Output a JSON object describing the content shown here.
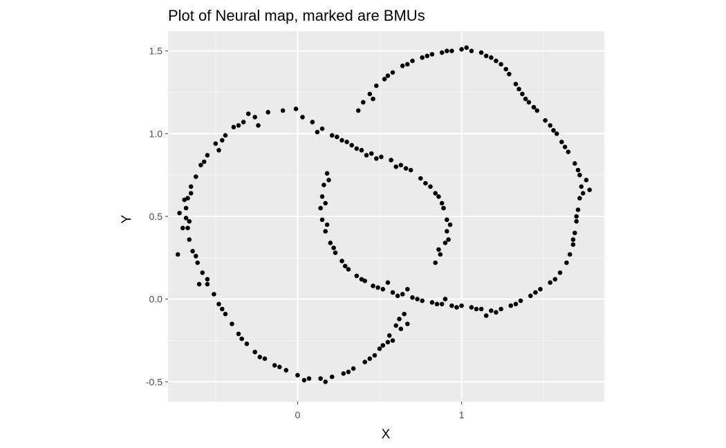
{
  "colors": {
    "panel_background": "#EBEBEB",
    "grid_major": "#FFFFFF",
    "grid_minor": "#F5F5F5",
    "points": "#000000",
    "tick_text": "#4D4D4D",
    "tick_marks": "#333333"
  },
  "chart_data": {
    "type": "scatter",
    "title": "Plot of Neural map, marked are BMUs",
    "xlabel": "X",
    "ylabel": "Y",
    "xlim": [
      -0.79,
      1.87
    ],
    "ylim": [
      -0.62,
      1.62
    ],
    "x_ticks": [
      {
        "value": 0,
        "label": "0"
      },
      {
        "value": 1,
        "label": "1"
      }
    ],
    "y_ticks": [
      {
        "value": -0.5,
        "label": "-0.5"
      },
      {
        "value": 0.0,
        "label": "0.0"
      },
      {
        "value": 0.5,
        "label": "0.5"
      },
      {
        "value": 1.0,
        "label": "1.0"
      },
      {
        "value": 1.5,
        "label": "1.5"
      }
    ],
    "x_minor_gridlines": [
      -0.5,
      0.5,
      1.5
    ],
    "y_minor_gridlines": [
      -0.25,
      0.25,
      0.75,
      1.25
    ],
    "grid": true,
    "legend": "none",
    "series": [
      {
        "description": "left crescent",
        "points": [
          [
            -0.01,
            1.15
          ],
          [
            -0.09,
            1.14
          ],
          [
            -0.18,
            1.13
          ],
          [
            -0.26,
            1.1
          ],
          [
            -0.33,
            1.07
          ],
          [
            -0.39,
            1.04
          ],
          [
            -0.44,
            0.99
          ],
          [
            -0.5,
            0.94
          ],
          [
            -0.55,
            0.87
          ],
          [
            -0.59,
            0.81
          ],
          [
            -0.62,
            0.74
          ],
          [
            -0.65,
            0.68
          ],
          [
            -0.67,
            0.61
          ],
          [
            -0.68,
            0.55
          ],
          [
            -0.68,
            0.49
          ],
          [
            -0.67,
            0.43
          ],
          [
            -0.66,
            0.36
          ],
          [
            -0.64,
            0.29
          ],
          [
            -0.61,
            0.22
          ],
          [
            -0.58,
            0.16
          ],
          [
            -0.55,
            0.09
          ],
          [
            -0.51,
            0.03
          ],
          [
            -0.48,
            -0.03
          ],
          [
            -0.44,
            -0.09
          ],
          [
            -0.4,
            -0.15
          ],
          [
            -0.36,
            -0.21
          ],
          [
            -0.31,
            -0.27
          ],
          [
            -0.26,
            -0.32
          ],
          [
            -0.2,
            -0.36
          ],
          [
            -0.14,
            -0.4
          ],
          [
            -0.07,
            -0.43
          ],
          [
            0.0,
            -0.46
          ],
          [
            0.07,
            -0.48
          ],
          [
            0.14,
            -0.48
          ],
          [
            0.21,
            -0.47
          ],
          [
            0.28,
            -0.45
          ],
          [
            0.34,
            -0.42
          ],
          [
            0.41,
            -0.38
          ],
          [
            0.47,
            -0.34
          ],
          [
            0.52,
            -0.28
          ],
          [
            0.56,
            -0.22
          ],
          [
            0.6,
            -0.16
          ],
          [
            0.62,
            -0.12
          ],
          [
            0.65,
            -0.09
          ],
          [
            0.67,
            -0.15
          ],
          [
            0.63,
            -0.18
          ],
          [
            0.58,
            -0.25
          ],
          [
            0.5,
            -0.3
          ],
          [
            -0.36,
            1.05
          ],
          [
            -0.46,
            0.96
          ],
          [
            -0.57,
            0.83
          ],
          [
            -0.65,
            0.64
          ],
          [
            -0.66,
            0.47
          ],
          [
            -0.62,
            0.26
          ],
          [
            -0.55,
            0.12
          ],
          [
            -0.46,
            -0.06
          ],
          [
            -0.34,
            -0.24
          ],
          [
            -0.23,
            -0.35
          ],
          [
            -0.11,
            -0.41
          ],
          [
            0.04,
            -0.49
          ],
          [
            0.17,
            -0.5
          ],
          [
            0.31,
            -0.44
          ],
          [
            0.44,
            -0.36
          ],
          [
            0.55,
            -0.26
          ],
          [
            -0.72,
            0.52
          ],
          [
            -0.7,
            0.43
          ],
          [
            -0.69,
            0.6
          ],
          [
            -0.73,
            0.27
          ],
          [
            -0.6,
            0.09
          ],
          [
            -0.3,
            1.12
          ],
          [
            -0.24,
            1.05
          ],
          [
            -0.48,
            0.9
          ]
        ]
      },
      {
        "description": "diagonal band and inner arc",
        "points": [
          [
            0.03,
            1.1
          ],
          [
            0.09,
            1.07
          ],
          [
            0.15,
            1.03
          ],
          [
            0.21,
            0.99
          ],
          [
            0.27,
            0.96
          ],
          [
            0.33,
            0.93
          ],
          [
            0.39,
            0.9
          ],
          [
            0.45,
            0.88
          ],
          [
            0.51,
            0.86
          ],
          [
            0.57,
            0.84
          ],
          [
            0.63,
            0.81
          ],
          [
            0.69,
            0.78
          ],
          [
            0.75,
            0.73
          ],
          [
            0.81,
            0.68
          ],
          [
            0.86,
            0.62
          ],
          [
            0.89,
            0.55
          ],
          [
            0.91,
            0.48
          ],
          [
            0.91,
            0.41
          ],
          [
            0.9,
            0.34
          ],
          [
            0.87,
            0.27
          ],
          [
            0.84,
            0.22
          ],
          [
            0.12,
            1.01
          ],
          [
            0.3,
            0.95
          ],
          [
            0.42,
            0.87
          ],
          [
            0.6,
            0.8
          ],
          [
            0.78,
            0.7
          ],
          [
            0.88,
            0.58
          ],
          [
            0.93,
            0.45
          ],
          [
            0.92,
            0.36
          ],
          [
            0.36,
            0.91
          ],
          [
            0.48,
            0.85
          ],
          [
            0.66,
            0.79
          ],
          [
            0.84,
            0.64
          ],
          [
            0.86,
            0.3
          ],
          [
            0.24,
            0.98
          ]
        ]
      },
      {
        "description": "inner left arc and lower band",
        "points": [
          [
            0.18,
            0.76
          ],
          [
            0.16,
            0.69
          ],
          [
            0.15,
            0.62
          ],
          [
            0.14,
            0.55
          ],
          [
            0.15,
            0.48
          ],
          [
            0.17,
            0.41
          ],
          [
            0.2,
            0.34
          ],
          [
            0.23,
            0.28
          ],
          [
            0.27,
            0.23
          ],
          [
            0.31,
            0.18
          ],
          [
            0.36,
            0.14
          ],
          [
            0.41,
            0.11
          ],
          [
            0.46,
            0.08
          ],
          [
            0.52,
            0.06
          ],
          [
            0.58,
            0.04
          ],
          [
            0.64,
            0.03
          ],
          [
            0.7,
            0.01
          ],
          [
            0.76,
            -0.01
          ],
          [
            0.82,
            -0.02
          ],
          [
            0.88,
            -0.03
          ],
          [
            0.94,
            -0.04
          ],
          [
            1.0,
            -0.04
          ],
          [
            1.06,
            -0.05
          ],
          [
            1.12,
            -0.06
          ],
          [
            1.18,
            -0.07
          ],
          [
            1.24,
            -0.06
          ],
          [
            1.3,
            -0.04
          ],
          [
            1.36,
            -0.01
          ],
          [
            1.42,
            0.02
          ],
          [
            1.48,
            0.06
          ],
          [
            1.54,
            0.1
          ],
          [
            1.6,
            0.16
          ],
          [
            1.64,
            0.22
          ],
          [
            0.19,
            0.72
          ],
          [
            0.17,
            0.58
          ],
          [
            0.18,
            0.45
          ],
          [
            0.22,
            0.31
          ],
          [
            0.29,
            0.2
          ],
          [
            0.39,
            0.12
          ],
          [
            0.49,
            0.07
          ],
          [
            0.61,
            0.02
          ],
          [
            0.73,
            0.0
          ],
          [
            0.85,
            -0.03
          ],
          [
            0.97,
            -0.05
          ],
          [
            1.09,
            -0.06
          ],
          [
            1.21,
            -0.08
          ],
          [
            1.33,
            -0.03
          ],
          [
            1.45,
            0.04
          ],
          [
            1.57,
            0.12
          ],
          [
            0.55,
            0.1
          ],
          [
            0.67,
            0.06
          ],
          [
            0.9,
            0.0
          ],
          [
            1.15,
            -0.1
          ]
        ]
      },
      {
        "description": "upper right arc",
        "points": [
          [
            0.37,
            1.14
          ],
          [
            0.4,
            1.19
          ],
          [
            0.44,
            1.24
          ],
          [
            0.48,
            1.29
          ],
          [
            0.53,
            1.33
          ],
          [
            0.58,
            1.37
          ],
          [
            0.64,
            1.41
          ],
          [
            0.7,
            1.44
          ],
          [
            0.76,
            1.46
          ],
          [
            0.82,
            1.48
          ],
          [
            0.88,
            1.49
          ],
          [
            0.94,
            1.5
          ],
          [
            1.0,
            1.51
          ],
          [
            1.06,
            1.5
          ],
          [
            1.12,
            1.49
          ],
          [
            1.18,
            1.46
          ],
          [
            1.24,
            1.42
          ],
          [
            1.29,
            1.36
          ],
          [
            1.33,
            1.3
          ],
          [
            1.37,
            1.24
          ],
          [
            1.41,
            1.19
          ],
          [
            1.46,
            1.14
          ],
          [
            1.51,
            1.08
          ],
          [
            1.56,
            1.02
          ],
          [
            1.61,
            0.95
          ],
          [
            1.65,
            0.89
          ],
          [
            1.69,
            0.82
          ],
          [
            1.72,
            0.75
          ],
          [
            1.73,
            0.68
          ],
          [
            1.72,
            0.61
          ],
          [
            1.71,
            0.54
          ],
          [
            1.7,
            0.47
          ],
          [
            1.69,
            0.4
          ],
          [
            1.68,
            0.33
          ],
          [
            1.66,
            0.27
          ],
          [
            0.46,
            1.21
          ],
          [
            0.55,
            1.35
          ],
          [
            0.67,
            1.42
          ],
          [
            0.79,
            1.47
          ],
          [
            0.91,
            1.5
          ],
          [
            1.03,
            1.52
          ],
          [
            1.15,
            1.47
          ],
          [
            1.27,
            1.39
          ],
          [
            1.35,
            1.27
          ],
          [
            1.44,
            1.16
          ],
          [
            1.54,
            1.05
          ],
          [
            1.63,
            0.92
          ],
          [
            1.71,
            0.78
          ],
          [
            1.74,
            0.64
          ],
          [
            1.7,
            0.5
          ],
          [
            1.68,
            0.36
          ],
          [
            1.76,
            0.72
          ],
          [
            1.78,
            0.66
          ],
          [
            1.58,
            1.0
          ],
          [
            1.39,
            1.21
          ],
          [
            1.21,
            1.44
          ]
        ]
      }
    ]
  }
}
